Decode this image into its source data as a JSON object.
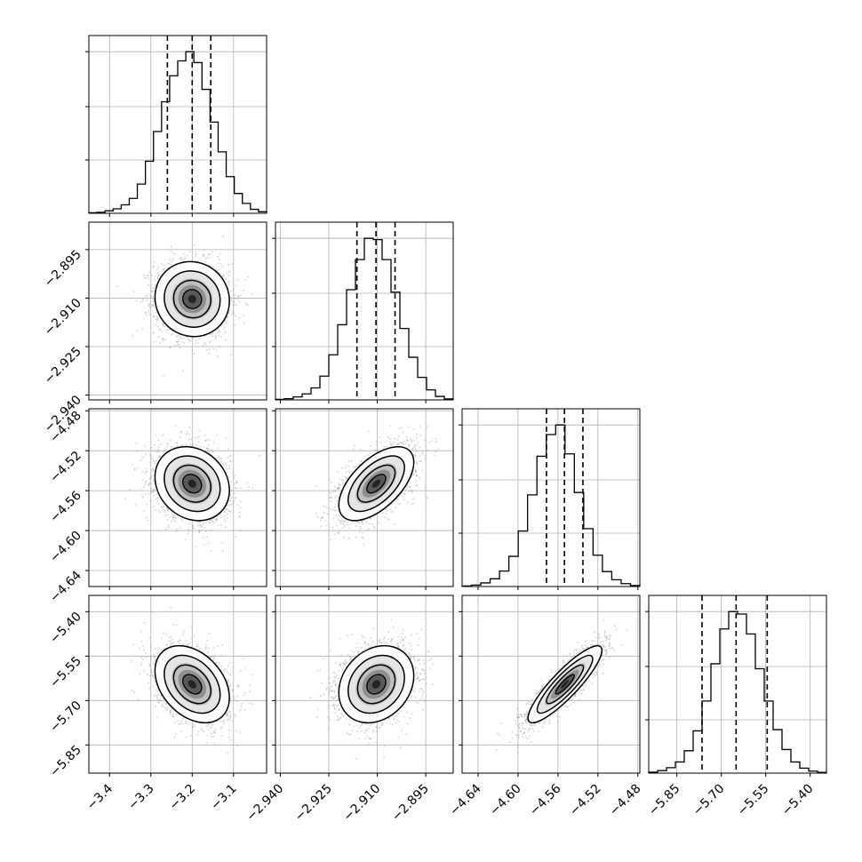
{
  "chart_data": {
    "type": "corner",
    "parameters": [
      {
        "range": [
          -3.45,
          -3.02
        ],
        "mean": -3.2,
        "sd": 0.045,
        "q16": -3.26,
        "q50": -3.2,
        "q84": -3.155,
        "ticks": [
          {
            "v": -3.4,
            "label": "−3.4"
          },
          {
            "v": -3.3,
            "label": "−3.3"
          },
          {
            "v": -3.2,
            "label": "−3.2"
          },
          {
            "v": -3.1,
            "label": "−3.1"
          }
        ]
      },
      {
        "range": [
          -2.9415,
          -2.8865
        ],
        "mean": -2.9103,
        "sd": 0.0058,
        "q16": -2.9163,
        "q50": -2.9104,
        "q84": -2.9045,
        "ticks": [
          {
            "v": -2.94,
            "label": "−2.940"
          },
          {
            "v": -2.925,
            "label": "−2.925"
          },
          {
            "v": -2.91,
            "label": "−2.910"
          },
          {
            "v": -2.895,
            "label": "−2.895"
          }
        ]
      },
      {
        "range": [
          -4.656,
          -4.478
        ],
        "mean": -4.553,
        "sd": 0.0185,
        "q16": -4.5715,
        "q50": -4.5535,
        "q84": -4.535,
        "ticks": [
          {
            "v": -4.64,
            "label": "−4.64"
          },
          {
            "v": -4.6,
            "label": "−4.60"
          },
          {
            "v": -4.56,
            "label": "−4.56"
          },
          {
            "v": -4.52,
            "label": "−4.52"
          },
          {
            "v": -4.48,
            "label": "−4.48"
          }
        ]
      },
      {
        "range": [
          -5.945,
          -5.345
        ],
        "mean": -5.645,
        "sd": 0.065,
        "q16": -5.765,
        "q50": -5.65,
        "q84": -5.545,
        "ticks": [
          {
            "v": -5.85,
            "label": "−5.85"
          },
          {
            "v": -5.7,
            "label": "−5.70"
          },
          {
            "v": -5.55,
            "label": "−5.55"
          },
          {
            "v": -5.4,
            "label": "−5.40"
          }
        ]
      }
    ],
    "histograms": [
      {
        "edges": [
          -3.45,
          -3.02
        ],
        "counts": [
          2,
          4,
          10,
          18,
          34,
          60,
          118,
          210,
          330,
          450,
          555,
          615,
          652,
          608,
          500,
          368,
          248,
          148,
          80,
          40,
          16,
          6
        ]
      },
      {
        "edges": [
          -2.9415,
          -2.8865
        ],
        "counts": [
          2,
          5,
          12,
          24,
          48,
          95,
          180,
          300,
          440,
          560,
          645,
          640,
          560,
          430,
          285,
          170,
          90,
          40,
          14,
          4
        ]
      },
      {
        "edges": [
          -4.656,
          -4.478
        ],
        "counts": [
          2,
          6,
          15,
          32,
          64,
          125,
          230,
          380,
          540,
          630,
          670,
          550,
          390,
          240,
          130,
          62,
          28,
          12,
          4
        ]
      },
      {
        "edges": [
          -5.945,
          -5.345
        ],
        "counts": [
          4,
          10,
          22,
          45,
          90,
          170,
          290,
          440,
          580,
          650,
          640,
          560,
          420,
          290,
          175,
          95,
          45,
          20,
          8,
          3
        ]
      }
    ],
    "correlations": [
      {
        "row": 1,
        "col": 0,
        "rho": -0.05
      },
      {
        "row": 2,
        "col": 0,
        "rho": -0.18
      },
      {
        "row": 2,
        "col": 1,
        "rho": 0.58
      },
      {
        "row": 3,
        "col": 0,
        "rho": -0.35
      },
      {
        "row": 3,
        "col": 1,
        "rho": 0.22
      },
      {
        "row": 3,
        "col": 2,
        "rho": 0.88
      }
    ],
    "contour_levels_sigma": [
      0.5,
      1.0,
      1.5,
      2.0
    ],
    "grid": true
  }
}
